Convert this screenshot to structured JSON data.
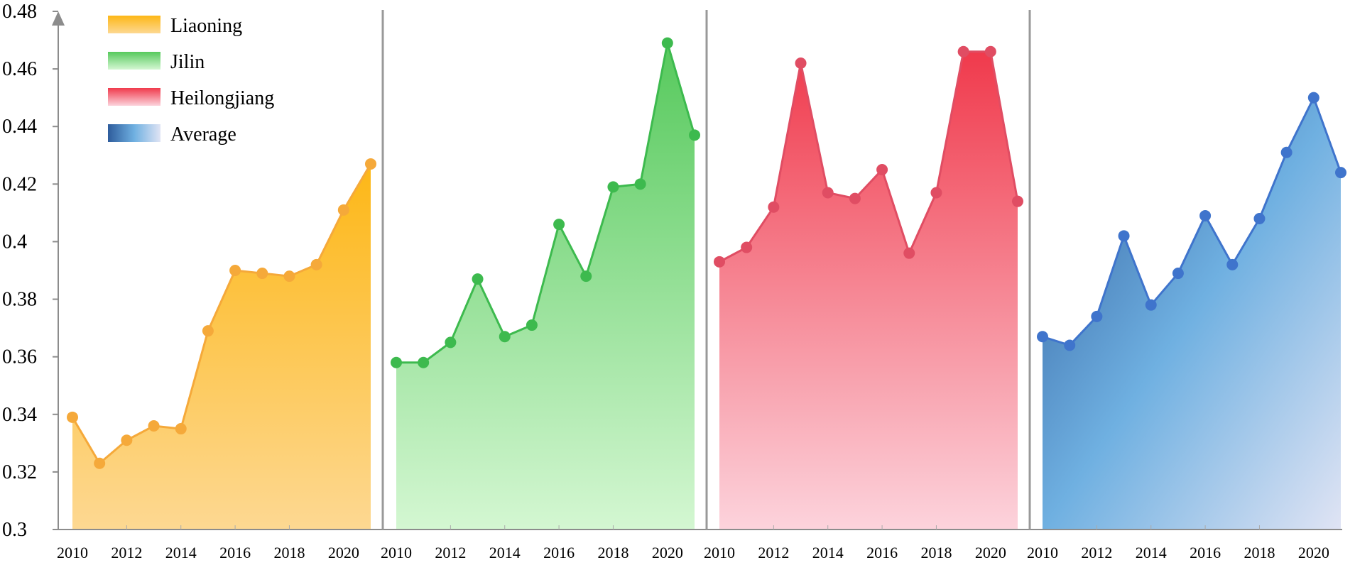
{
  "chart_data": {
    "type": "area",
    "title": "",
    "xlabel": "",
    "ylabel": "",
    "ylim": [
      0.3,
      0.48
    ],
    "yticks": [
      "0.3",
      "0.32",
      "0.34",
      "0.36",
      "0.38",
      "0.4",
      "0.42",
      "0.44",
      "0.46",
      "0.48"
    ],
    "x": [
      2010,
      2011,
      2012,
      2013,
      2014,
      2015,
      2016,
      2017,
      2018,
      2019,
      2020,
      2021
    ],
    "xtick_labels": [
      "2010",
      "2012",
      "2014",
      "2016",
      "2018",
      "2020"
    ],
    "grid": false,
    "legend_position": "top-left",
    "series": [
      {
        "name": "Liaoning",
        "color": "#f5a93a",
        "values": [
          0.339,
          0.323,
          0.331,
          0.336,
          0.335,
          0.369,
          0.39,
          0.389,
          0.388,
          0.392,
          0.411,
          0.427
        ]
      },
      {
        "name": "Jilin",
        "color": "#3dba4e",
        "values": [
          0.358,
          0.358,
          0.365,
          0.387,
          0.367,
          0.371,
          0.406,
          0.388,
          0.419,
          0.42,
          0.469,
          0.437
        ]
      },
      {
        "name": "Heilongjiang",
        "color": "#e04d63",
        "values": [
          0.393,
          0.398,
          0.412,
          0.462,
          0.417,
          0.415,
          0.425,
          0.396,
          0.417,
          0.466,
          0.466,
          0.414
        ]
      },
      {
        "name": "Average",
        "color": "#3f74cc",
        "values": [
          0.367,
          0.364,
          0.374,
          0.402,
          0.378,
          0.389,
          0.409,
          0.392,
          0.408,
          0.431,
          0.45,
          0.424
        ]
      }
    ]
  }
}
